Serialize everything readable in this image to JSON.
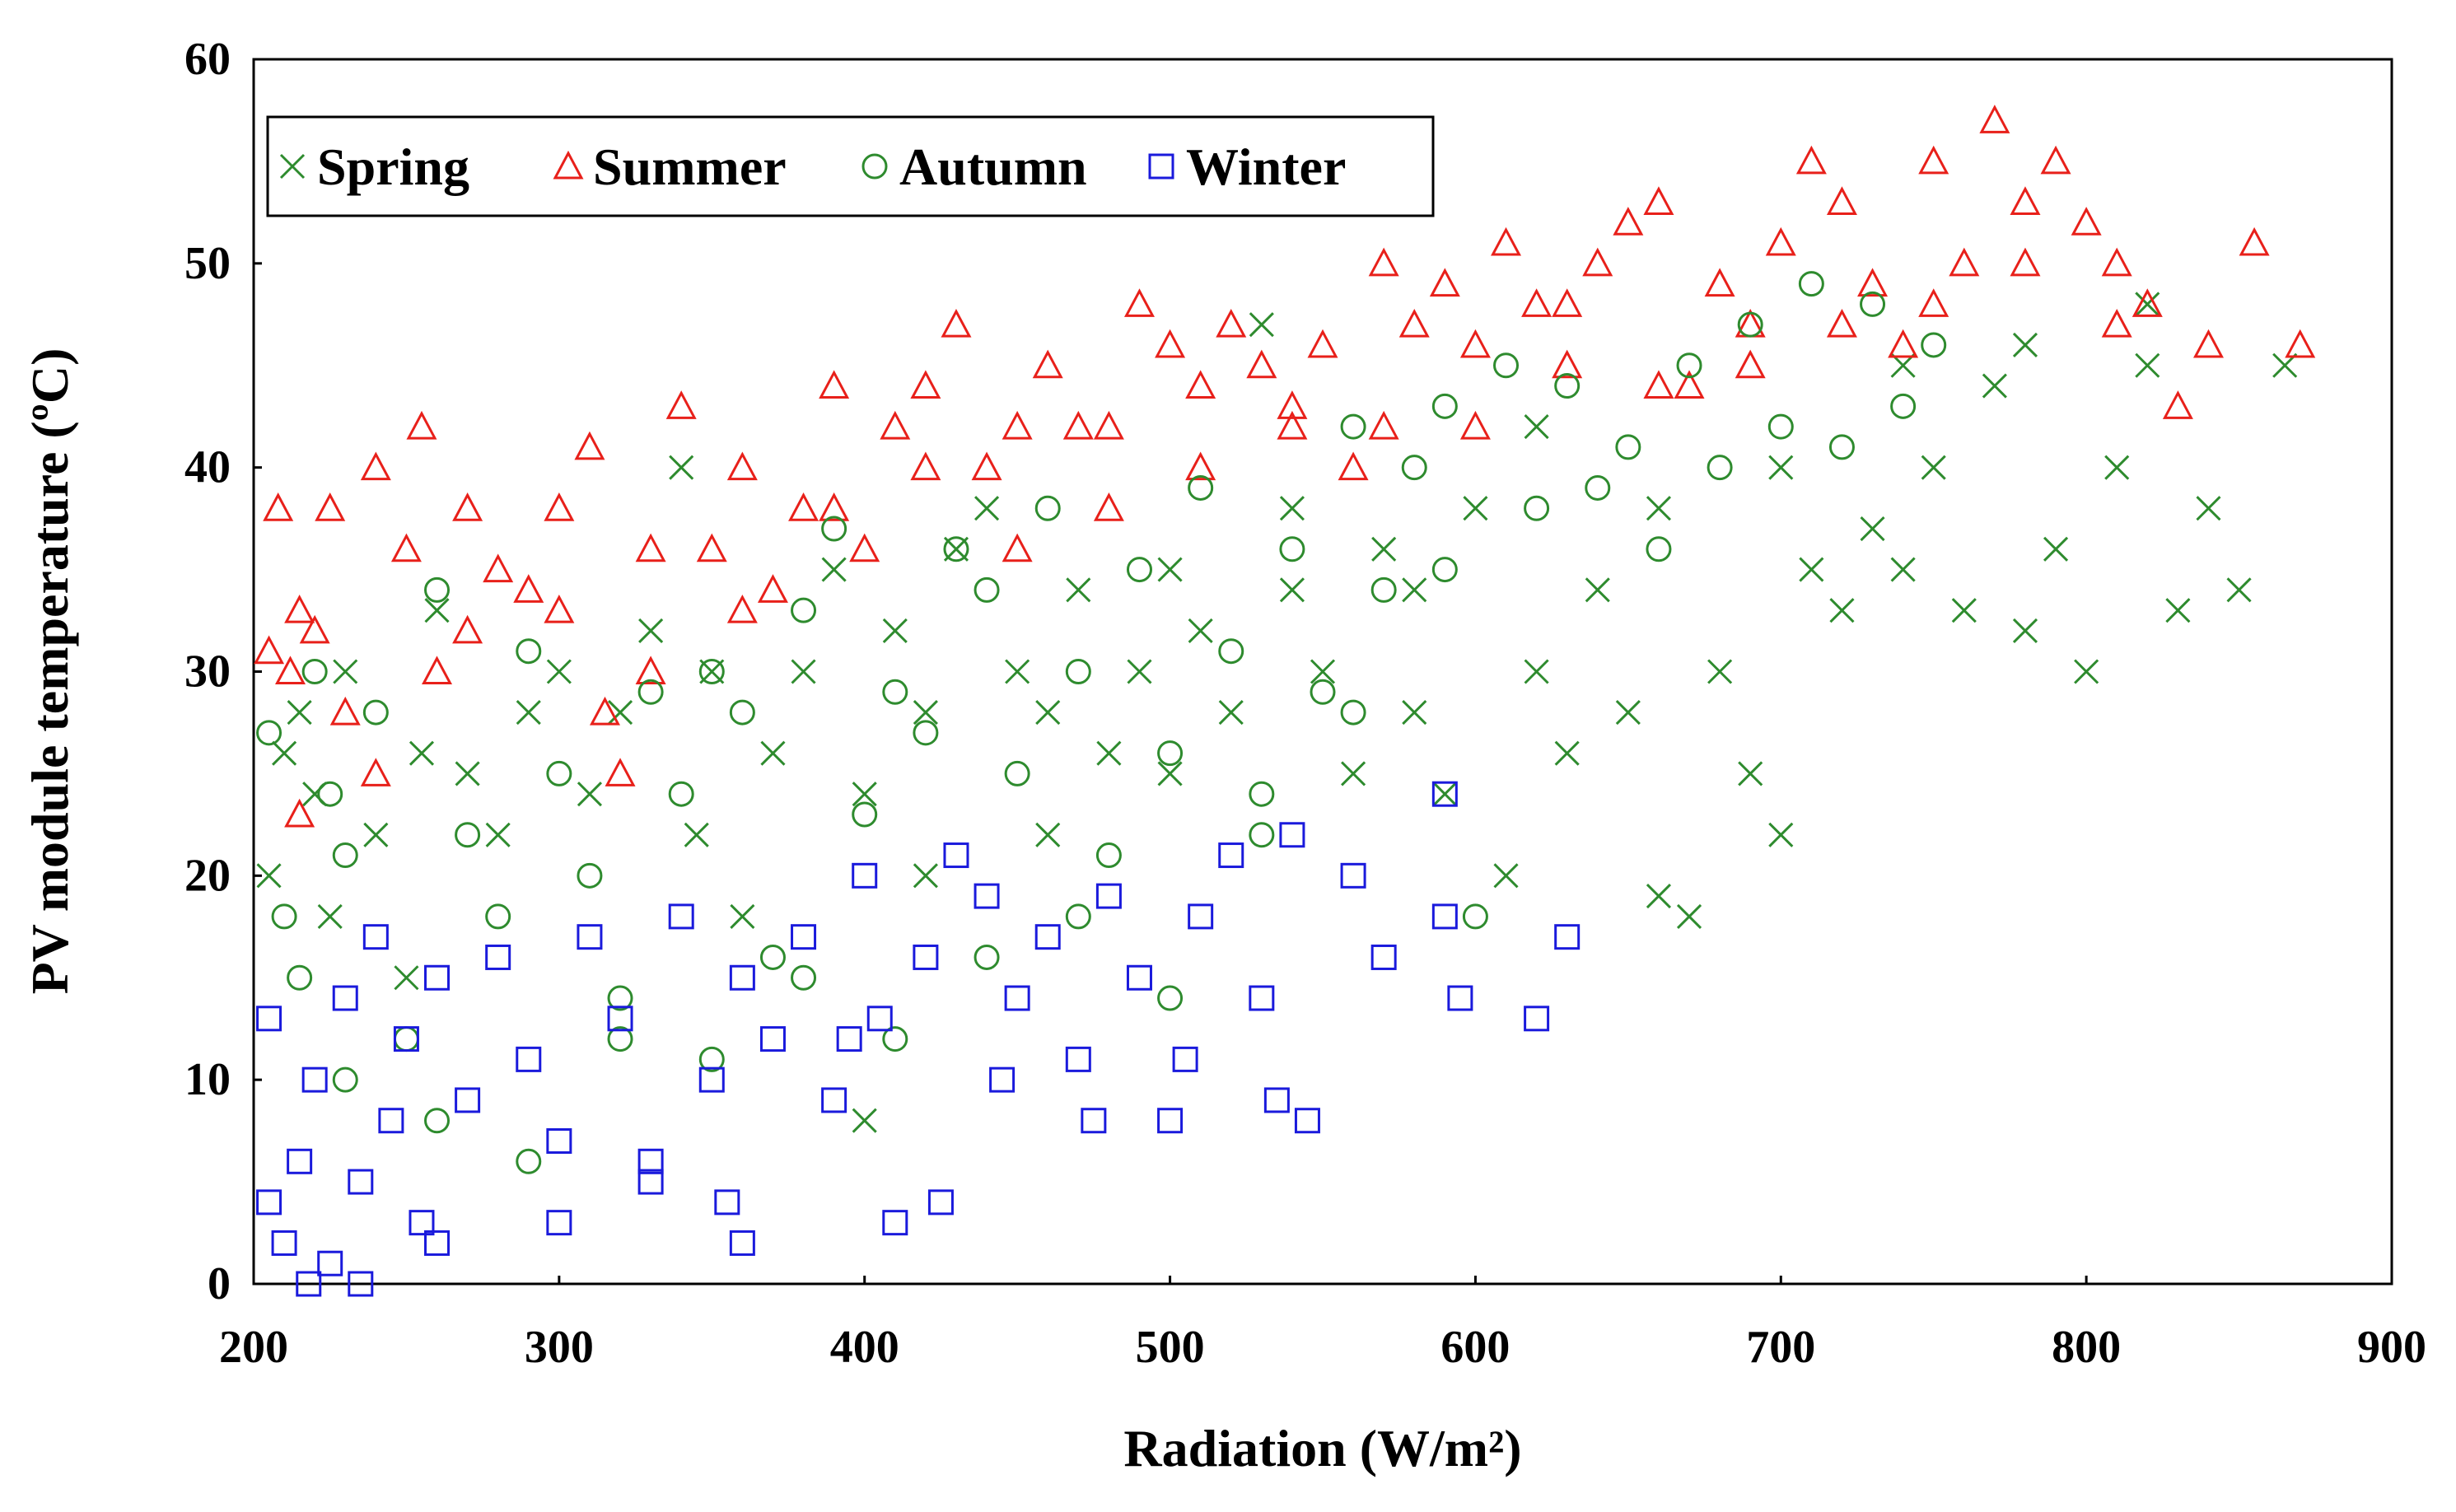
{
  "chart_data": {
    "type": "scatter",
    "title": "",
    "xlabel": "Radiation (W/m²)",
    "ylabel": "PV module temperature (ºC)",
    "xlim": [
      200,
      900
    ],
    "ylim": [
      0,
      60
    ],
    "xticks": [
      "200",
      "300",
      "400",
      "500",
      "600",
      "700",
      "800",
      "900"
    ],
    "yticks": [
      "0",
      "10",
      "20",
      "30",
      "40",
      "50",
      "60"
    ],
    "grid": false,
    "legend_position": "top-left",
    "series": [
      {
        "name": "Spring",
        "marker": "x",
        "color": "#2e8b2e",
        "points": [
          [
            205,
            20
          ],
          [
            210,
            26
          ],
          [
            215,
            28
          ],
          [
            220,
            24
          ],
          [
            225,
            18
          ],
          [
            230,
            30
          ],
          [
            240,
            22
          ],
          [
            250,
            15
          ],
          [
            255,
            26
          ],
          [
            260,
            33
          ],
          [
            270,
            25
          ],
          [
            280,
            22
          ],
          [
            290,
            28
          ],
          [
            300,
            30
          ],
          [
            310,
            24
          ],
          [
            320,
            28
          ],
          [
            330,
            32
          ],
          [
            340,
            40
          ],
          [
            345,
            22
          ],
          [
            350,
            30
          ],
          [
            360,
            18
          ],
          [
            370,
            26
          ],
          [
            380,
            30
          ],
          [
            390,
            35
          ],
          [
            400,
            24
          ],
          [
            400,
            8
          ],
          [
            410,
            32
          ],
          [
            420,
            28
          ],
          [
            430,
            36
          ],
          [
            440,
            38
          ],
          [
            450,
            30
          ],
          [
            460,
            22
          ],
          [
            470,
            34
          ],
          [
            480,
            26
          ],
          [
            490,
            30
          ],
          [
            500,
            25
          ],
          [
            510,
            32
          ],
          [
            520,
            28
          ],
          [
            530,
            47
          ],
          [
            540,
            34
          ],
          [
            550,
            30
          ],
          [
            560,
            25
          ],
          [
            570,
            36
          ],
          [
            580,
            28
          ],
          [
            590,
            24
          ],
          [
            600,
            38
          ],
          [
            610,
            20
          ],
          [
            620,
            30
          ],
          [
            630,
            26
          ],
          [
            640,
            34
          ],
          [
            650,
            28
          ],
          [
            660,
            19
          ],
          [
            670,
            18
          ],
          [
            680,
            30
          ],
          [
            690,
            25
          ],
          [
            700,
            22
          ],
          [
            710,
            35
          ],
          [
            720,
            33
          ],
          [
            730,
            37
          ],
          [
            740,
            35
          ],
          [
            750,
            40
          ],
          [
            760,
            33
          ],
          [
            770,
            44
          ],
          [
            780,
            32
          ],
          [
            790,
            36
          ],
          [
            800,
            30
          ],
          [
            810,
            40
          ],
          [
            820,
            45
          ],
          [
            830,
            33
          ],
          [
            840,
            38
          ],
          [
            850,
            34
          ],
          [
            865,
            45
          ],
          [
            420,
            20
          ],
          [
            460,
            28
          ],
          [
            500,
            35
          ],
          [
            540,
            38
          ],
          [
            580,
            34
          ],
          [
            620,
            42
          ],
          [
            660,
            38
          ],
          [
            700,
            40
          ],
          [
            740,
            45
          ],
          [
            780,
            46
          ],
          [
            820,
            48
          ]
        ]
      },
      {
        "name": "Summer",
        "marker": "triangle",
        "color": "#e8201a",
        "points": [
          [
            205,
            31
          ],
          [
            208,
            38
          ],
          [
            212,
            30
          ],
          [
            215,
            33
          ],
          [
            220,
            32
          ],
          [
            225,
            38
          ],
          [
            230,
            28
          ],
          [
            240,
            40
          ],
          [
            250,
            36
          ],
          [
            255,
            42
          ],
          [
            260,
            30
          ],
          [
            270,
            38
          ],
          [
            280,
            35
          ],
          [
            290,
            34
          ],
          [
            300,
            38
          ],
          [
            310,
            41
          ],
          [
            315,
            28
          ],
          [
            320,
            25
          ],
          [
            330,
            36
          ],
          [
            340,
            43
          ],
          [
            350,
            36
          ],
          [
            360,
            40
          ],
          [
            370,
            34
          ],
          [
            380,
            38
          ],
          [
            390,
            44
          ],
          [
            400,
            36
          ],
          [
            410,
            42
          ],
          [
            420,
            44
          ],
          [
            430,
            47
          ],
          [
            440,
            40
          ],
          [
            450,
            36
          ],
          [
            460,
            45
          ],
          [
            470,
            42
          ],
          [
            480,
            38
          ],
          [
            490,
            48
          ],
          [
            500,
            46
          ],
          [
            510,
            44
          ],
          [
            520,
            47
          ],
          [
            530,
            45
          ],
          [
            540,
            42
          ],
          [
            550,
            46
          ],
          [
            560,
            40
          ],
          [
            570,
            50
          ],
          [
            580,
            47
          ],
          [
            590,
            49
          ],
          [
            600,
            46
          ],
          [
            610,
            51
          ],
          [
            620,
            48
          ],
          [
            630,
            48
          ],
          [
            640,
            50
          ],
          [
            650,
            52
          ],
          [
            660,
            53
          ],
          [
            670,
            44
          ],
          [
            680,
            49
          ],
          [
            690,
            47
          ],
          [
            700,
            51
          ],
          [
            710,
            55
          ],
          [
            720,
            53
          ],
          [
            730,
            49
          ],
          [
            740,
            46
          ],
          [
            750,
            55
          ],
          [
            760,
            50
          ],
          [
            770,
            57
          ],
          [
            780,
            53
          ],
          [
            790,
            55
          ],
          [
            800,
            52
          ],
          [
            810,
            50
          ],
          [
            820,
            48
          ],
          [
            830,
            43
          ],
          [
            840,
            46
          ],
          [
            855,
            51
          ],
          [
            870,
            46
          ],
          [
            215,
            23
          ],
          [
            240,
            25
          ],
          [
            270,
            32
          ],
          [
            300,
            33
          ],
          [
            330,
            30
          ],
          [
            360,
            33
          ],
          [
            390,
            38
          ],
          [
            420,
            40
          ],
          [
            450,
            42
          ],
          [
            480,
            42
          ],
          [
            510,
            40
          ],
          [
            540,
            43
          ],
          [
            570,
            42
          ],
          [
            600,
            42
          ],
          [
            630,
            45
          ],
          [
            660,
            44
          ],
          [
            690,
            45
          ],
          [
            720,
            47
          ],
          [
            750,
            48
          ],
          [
            780,
            50
          ],
          [
            810,
            47
          ]
        ]
      },
      {
        "name": "Autumn",
        "marker": "circle",
        "color": "#2e8b2e",
        "points": [
          [
            205,
            27
          ],
          [
            210,
            18
          ],
          [
            215,
            15
          ],
          [
            220,
            30
          ],
          [
            225,
            24
          ],
          [
            230,
            21
          ],
          [
            240,
            28
          ],
          [
            250,
            12
          ],
          [
            260,
            34
          ],
          [
            270,
            22
          ],
          [
            280,
            18
          ],
          [
            290,
            31
          ],
          [
            300,
            25
          ],
          [
            310,
            20
          ],
          [
            320,
            14
          ],
          [
            330,
            29
          ],
          [
            340,
            24
          ],
          [
            350,
            30
          ],
          [
            360,
            28
          ],
          [
            370,
            16
          ],
          [
            380,
            33
          ],
          [
            390,
            37
          ],
          [
            400,
            23
          ],
          [
            410,
            29
          ],
          [
            420,
            27
          ],
          [
            430,
            36
          ],
          [
            440,
            34
          ],
          [
            450,
            25
          ],
          [
            460,
            38
          ],
          [
            470,
            30
          ],
          [
            480,
            21
          ],
          [
            490,
            35
          ],
          [
            500,
            26
          ],
          [
            510,
            39
          ],
          [
            520,
            31
          ],
          [
            530,
            24
          ],
          [
            540,
            36
          ],
          [
            550,
            29
          ],
          [
            560,
            42
          ],
          [
            570,
            34
          ],
          [
            580,
            40
          ],
          [
            590,
            43
          ],
          [
            600,
            18
          ],
          [
            610,
            45
          ],
          [
            620,
            38
          ],
          [
            630,
            44
          ],
          [
            640,
            39
          ],
          [
            650,
            41
          ],
          [
            660,
            36
          ],
          [
            670,
            45
          ],
          [
            680,
            40
          ],
          [
            690,
            47
          ],
          [
            700,
            42
          ],
          [
            710,
            49
          ],
          [
            720,
            41
          ],
          [
            730,
            48
          ],
          [
            740,
            43
          ],
          [
            750,
            46
          ],
          [
            230,
            10
          ],
          [
            260,
            8
          ],
          [
            290,
            6
          ],
          [
            320,
            12
          ],
          [
            350,
            11
          ],
          [
            380,
            15
          ],
          [
            410,
            12
          ],
          [
            440,
            16
          ],
          [
            470,
            18
          ],
          [
            500,
            14
          ],
          [
            530,
            22
          ],
          [
            560,
            28
          ],
          [
            590,
            35
          ]
        ]
      },
      {
        "name": "Winter",
        "marker": "square",
        "color": "#1a1adc",
        "points": [
          [
            205,
            4
          ],
          [
            205,
            13
          ],
          [
            210,
            2
          ],
          [
            215,
            6
          ],
          [
            220,
            10
          ],
          [
            225,
            1
          ],
          [
            230,
            14
          ],
          [
            235,
            5
          ],
          [
            240,
            17
          ],
          [
            245,
            8
          ],
          [
            250,
            12
          ],
          [
            255,
            3
          ],
          [
            260,
            15
          ],
          [
            270,
            9
          ],
          [
            280,
            16
          ],
          [
            290,
            11
          ],
          [
            300,
            7
          ],
          [
            310,
            17
          ],
          [
            320,
            13
          ],
          [
            330,
            5
          ],
          [
            340,
            18
          ],
          [
            350,
            10
          ],
          [
            355,
            4
          ],
          [
            360,
            15
          ],
          [
            370,
            12
          ],
          [
            380,
            17
          ],
          [
            390,
            9
          ],
          [
            400,
            20
          ],
          [
            405,
            13
          ],
          [
            410,
            3
          ],
          [
            420,
            16
          ],
          [
            430,
            21
          ],
          [
            440,
            19
          ],
          [
            445,
            10
          ],
          [
            450,
            14
          ],
          [
            460,
            17
          ],
          [
            470,
            11
          ],
          [
            480,
            19
          ],
          [
            490,
            15
          ],
          [
            500,
            8
          ],
          [
            510,
            18
          ],
          [
            520,
            21
          ],
          [
            530,
            14
          ],
          [
            535,
            9
          ],
          [
            540,
            22
          ],
          [
            545,
            8
          ],
          [
            560,
            20
          ],
          [
            570,
            16
          ],
          [
            590,
            24
          ],
          [
            590,
            18
          ],
          [
            595,
            14
          ],
          [
            620,
            13
          ],
          [
            630,
            17
          ],
          [
            218,
            0
          ],
          [
            235,
            0
          ],
          [
            260,
            2
          ],
          [
            300,
            3
          ],
          [
            330,
            6
          ],
          [
            360,
            2
          ],
          [
            395,
            12
          ],
          [
            425,
            4
          ],
          [
            475,
            8
          ],
          [
            505,
            11
          ]
        ]
      }
    ]
  }
}
